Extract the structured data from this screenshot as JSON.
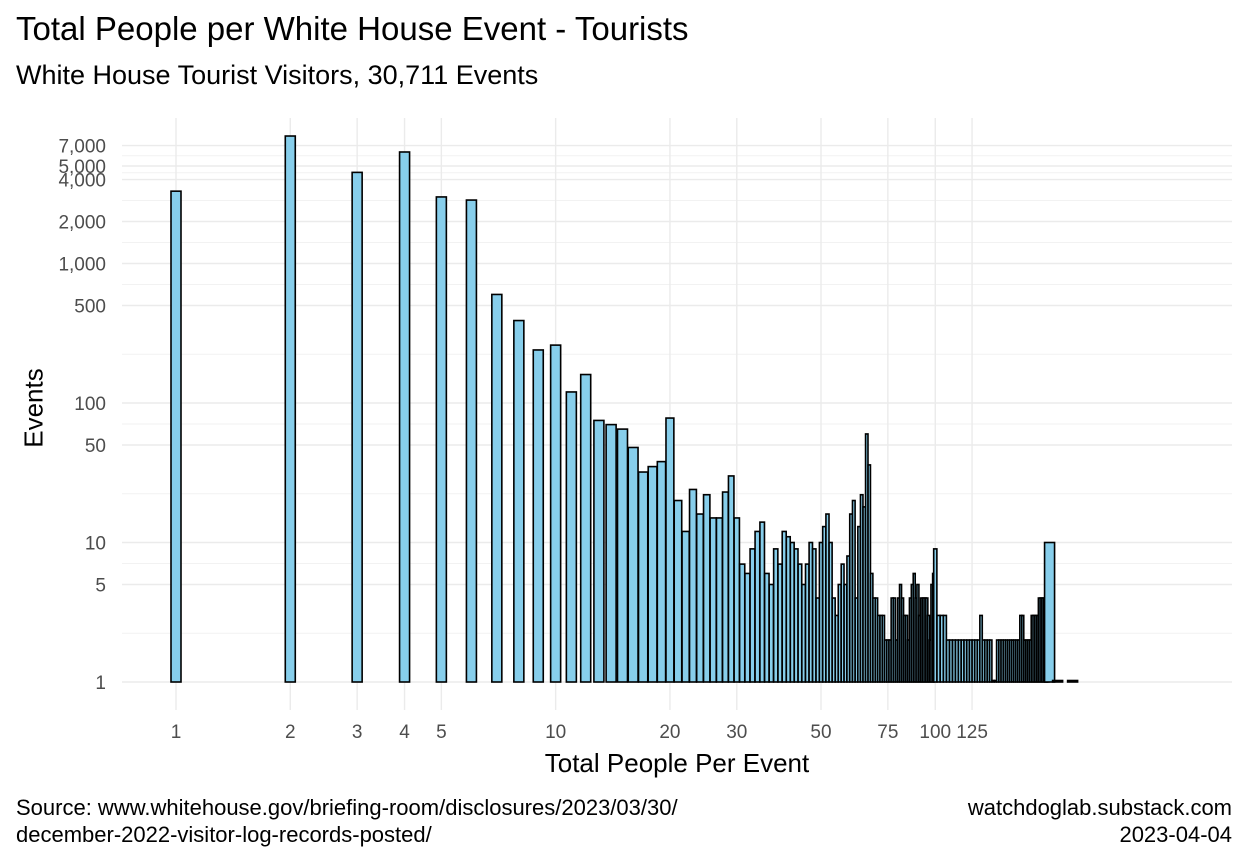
{
  "chart_data": {
    "type": "bar",
    "title": "Total People per White House Event - Tourists",
    "subtitle": "White House Tourist Visitors, 30,711 Events",
    "xlabel": "Total People Per Event",
    "ylabel": "Events",
    "x_scale": "log",
    "y_scale": "log",
    "grid": true,
    "legend": "none",
    "fill_color": "#87CEEB",
    "edge_color": "#000000",
    "xlim": [
      0.95,
      250
    ],
    "ylim": [
      0.8,
      9000
    ],
    "x_ticks": [
      1,
      2,
      3,
      4,
      5,
      10,
      20,
      30,
      50,
      75,
      100,
      125
    ],
    "x_tick_labels": [
      "1",
      "2",
      "3",
      "4",
      "5",
      "10",
      "20",
      "30",
      "50",
      "75",
      "100",
      "125"
    ],
    "y_ticks": [
      1,
      5,
      10,
      50,
      100,
      500,
      1000,
      2000,
      4000,
      5000,
      7000
    ],
    "y_tick_labels": [
      "1",
      "5",
      "10",
      "50",
      "100",
      "500",
      "1,000",
      "2,000",
      "4,000",
      "5,000",
      "7,000"
    ],
    "x": [
      1,
      2,
      3,
      4,
      5,
      6,
      7,
      8,
      9,
      10,
      11,
      12,
      13,
      14,
      15,
      16,
      17,
      18,
      19,
      20,
      21,
      22,
      23,
      24,
      25,
      26,
      27,
      28,
      29,
      30,
      31,
      32,
      33,
      34,
      35,
      36,
      37,
      38,
      39,
      40,
      41,
      42,
      43,
      44,
      45,
      46,
      47,
      48,
      49,
      50,
      51,
      52,
      53,
      54,
      55,
      56,
      57,
      58,
      59,
      60,
      61,
      62,
      63,
      64,
      65,
      66,
      67,
      68,
      69,
      70,
      71,
      72,
      73,
      74,
      75,
      76,
      77,
      78,
      79,
      80,
      81,
      82,
      83,
      84,
      85,
      86,
      87,
      88,
      89,
      90,
      91,
      92,
      93,
      94,
      95,
      96,
      97,
      98,
      99,
      100,
      102,
      104,
      106,
      108,
      110,
      112,
      114,
      116,
      118,
      120,
      122,
      124,
      126,
      128,
      130,
      132,
      134,
      136,
      138,
      140,
      142,
      144,
      146,
      148,
      150,
      152,
      154,
      156,
      158,
      160,
      162,
      164,
      166,
      168,
      170,
      172,
      174,
      176,
      178,
      180,
      182,
      184,
      186,
      188,
      190,
      192,
      194,
      196,
      198,
      200,
      210,
      230
    ],
    "values": [
      3300,
      8200,
      4500,
      6300,
      3000,
      2850,
      600,
      390,
      240,
      260,
      120,
      160,
      75,
      70,
      65,
      48,
      32,
      35,
      38,
      78,
      20,
      12,
      24,
      16,
      22,
      15,
      15,
      23,
      30,
      15,
      7,
      6,
      9,
      12,
      14,
      6,
      5,
      9,
      7,
      12,
      11,
      10,
      9,
      7,
      5,
      7,
      10,
      9,
      4,
      10,
      13,
      16,
      10,
      4,
      3,
      5,
      7,
      5,
      8,
      16,
      20,
      4,
      13,
      22,
      18,
      60,
      36,
      6,
      4,
      4,
      3,
      3,
      3,
      2,
      2,
      2,
      4,
      4,
      2,
      4,
      5,
      4,
      3,
      3,
      2,
      4,
      5,
      6,
      4,
      5,
      3,
      4,
      4,
      4,
      4,
      3,
      2,
      5,
      6,
      9,
      3,
      3,
      3,
      2,
      2,
      2,
      2,
      2,
      2,
      2,
      2,
      2,
      2,
      2,
      2,
      3,
      2,
      2,
      2,
      2,
      1,
      1,
      2,
      2,
      2,
      2,
      2,
      2,
      2,
      2,
      2,
      2,
      2,
      3,
      3,
      2,
      2,
      2,
      2,
      3,
      3,
      3,
      3,
      4,
      4,
      4,
      4,
      4,
      4,
      10,
      1,
      1
    ]
  },
  "caption": {
    "source_line1": "Source: www.whitehouse.gov/briefing-room/disclosures/2023/03/30/",
    "source_line2": "december-2022-visitor-log-records-posted/",
    "site": "watchdoglab.substack.com",
    "date": "2023-04-04"
  }
}
